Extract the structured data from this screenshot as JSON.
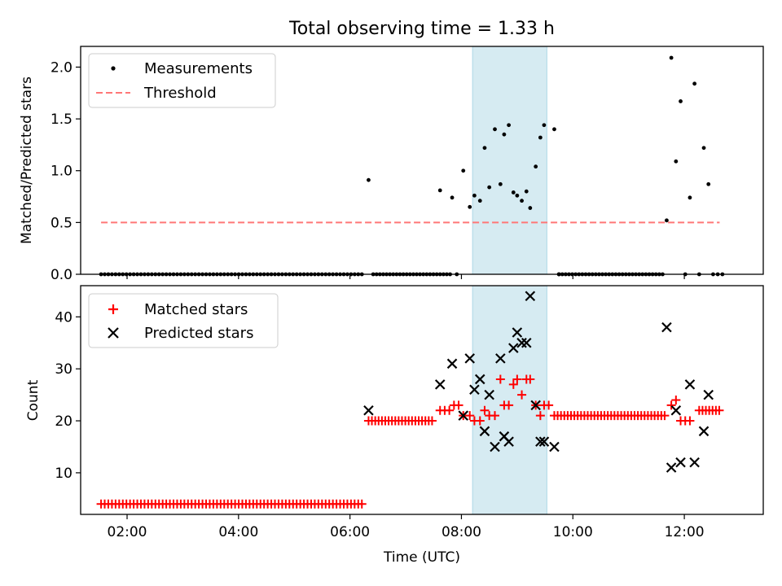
{
  "figure_title": "Total observing time = 1.33 h",
  "chart_data": [
    {
      "type": "scatter",
      "panel": "top",
      "ylabel": "Matched/Predicted stars",
      "xlabel": "",
      "xlim": [
        "01:10",
        "13:25"
      ],
      "ylim": [
        0,
        2.2
      ],
      "yticks": [
        "0.0",
        "0.5",
        "1.0",
        "1.5",
        "2.0"
      ],
      "xticks": [
        "02:00",
        "04:00",
        "06:00",
        "08:00",
        "10:00",
        "12:00"
      ],
      "highlight_span": {
        "start": "08:12",
        "end": "09:32",
        "color": "#add8e6"
      },
      "legend": {
        "placement": "top-left",
        "entries": [
          "Measurements",
          "Threshold"
        ]
      },
      "series": [
        {
          "name": "Measurements",
          "color": "#000000",
          "points": [
            [
              "06:20",
              0.91
            ],
            [
              "07:37",
              0.81
            ],
            [
              "07:50",
              0.74
            ],
            [
              "08:02",
              1.0
            ],
            [
              "08:09",
              0.65
            ],
            [
              "08:14",
              0.76
            ],
            [
              "08:20",
              0.71
            ],
            [
              "08:25",
              1.22
            ],
            [
              "08:30",
              0.84
            ],
            [
              "08:36",
              1.4
            ],
            [
              "08:42",
              0.87
            ],
            [
              "08:46",
              1.35
            ],
            [
              "08:51",
              1.44
            ],
            [
              "08:56",
              0.79
            ],
            [
              "09:00",
              0.76
            ],
            [
              "09:05",
              0.71
            ],
            [
              "09:10",
              0.8
            ],
            [
              "09:14",
              0.64
            ],
            [
              "09:20",
              1.04
            ],
            [
              "09:25",
              1.32
            ],
            [
              "09:29",
              1.44
            ],
            [
              "09:40",
              1.4
            ],
            [
              "11:41",
              0.52
            ],
            [
              "11:46",
              2.09
            ],
            [
              "11:51",
              1.09
            ],
            [
              "11:56",
              1.67
            ],
            [
              "12:06",
              0.74
            ],
            [
              "12:11",
              1.84
            ],
            [
              "12:21",
              1.22
            ],
            [
              "12:26",
              0.87
            ],
            [
              "12:01",
              0.0
            ],
            [
              "12:16",
              0.0
            ],
            [
              "12:31",
              0.0
            ],
            [
              "12:36",
              0.0
            ],
            [
              "12:41",
              0.0
            ],
            [
              "07:55",
              0.0
            ],
            [
              "09:45",
              0.0
            ]
          ],
          "zero_runs": [
            {
              "start": "01:32",
              "end": "06:15",
              "step_min": 3.9
            },
            {
              "start": "06:25",
              "end": "07:50",
              "step_min": 3.6
            },
            {
              "start": "09:45",
              "end": "11:40",
              "step_min": 3.6
            }
          ]
        },
        {
          "name": "Threshold",
          "color": "#ff7777",
          "style": "dashed",
          "x": [
            "01:32",
            "12:38"
          ],
          "y": [
            0.5,
            0.5
          ]
        }
      ]
    },
    {
      "type": "scatter",
      "panel": "bottom",
      "ylabel": "Count",
      "xlabel": "Time (UTC)",
      "xlim": [
        "01:10",
        "13:25"
      ],
      "ylim": [
        2,
        46
      ],
      "yticks": [
        "10",
        "20",
        "30",
        "40"
      ],
      "xticks": [
        "02:00",
        "04:00",
        "06:00",
        "08:00",
        "10:00",
        "12:00"
      ],
      "highlight_span": {
        "start": "08:12",
        "end": "09:32",
        "color": "#add8e6"
      },
      "legend": {
        "placement": "top-left",
        "entries": [
          "Matched stars",
          "Predicted stars"
        ]
      },
      "series": [
        {
          "name": "Matched stars",
          "marker": "plus",
          "color": "#ff0000",
          "runs": [
            {
              "start": "01:32",
              "end": "06:15",
              "step_min": 3.9,
              "value": 4
            },
            {
              "start": "06:20",
              "end": "07:30",
              "step_min": 3.6,
              "value": 20
            },
            {
              "start": "09:40",
              "end": "11:40",
              "step_min": 3.6,
              "value": 21
            },
            {
              "start": "12:16",
              "end": "12:41",
              "step_min": 3.6,
              "value": 22
            }
          ],
          "points": [
            [
              "07:37",
              22
            ],
            [
              "07:42",
              22
            ],
            [
              "07:47",
              22
            ],
            [
              "07:52",
              23
            ],
            [
              "07:57",
              23
            ],
            [
              "08:02",
              21
            ],
            [
              "08:09",
              21
            ],
            [
              "08:14",
              20
            ],
            [
              "08:20",
              20
            ],
            [
              "08:25",
              22
            ],
            [
              "08:30",
              21
            ],
            [
              "08:36",
              21
            ],
            [
              "08:42",
              28
            ],
            [
              "08:46",
              23
            ],
            [
              "08:51",
              23
            ],
            [
              "08:56",
              27
            ],
            [
              "09:00",
              28
            ],
            [
              "09:05",
              25
            ],
            [
              "09:10",
              28
            ],
            [
              "09:14",
              28
            ],
            [
              "09:20",
              23
            ],
            [
              "09:25",
              21
            ],
            [
              "09:29",
              23
            ],
            [
              "09:34",
              23
            ],
            [
              "11:46",
              23
            ],
            [
              "11:51",
              24
            ],
            [
              "11:56",
              20
            ],
            [
              "12:01",
              20
            ],
            [
              "12:06",
              20
            ]
          ]
        },
        {
          "name": "Predicted stars",
          "marker": "x",
          "color": "#000000",
          "points": [
            [
              "06:20",
              22
            ],
            [
              "07:37",
              27
            ],
            [
              "07:50",
              31
            ],
            [
              "08:02",
              21
            ],
            [
              "08:09",
              32
            ],
            [
              "08:14",
              26
            ],
            [
              "08:20",
              28
            ],
            [
              "08:25",
              18
            ],
            [
              "08:30",
              25
            ],
            [
              "08:36",
              15
            ],
            [
              "08:42",
              32
            ],
            [
              "08:46",
              17
            ],
            [
              "08:51",
              16
            ],
            [
              "08:56",
              34
            ],
            [
              "09:00",
              37
            ],
            [
              "09:05",
              35
            ],
            [
              "09:10",
              35
            ],
            [
              "09:14",
              44
            ],
            [
              "09:20",
              23
            ],
            [
              "09:25",
              16
            ],
            [
              "09:29",
              16
            ],
            [
              "09:40",
              15
            ],
            [
              "11:41",
              38
            ],
            [
              "11:46",
              11
            ],
            [
              "11:51",
              22
            ],
            [
              "11:56",
              12
            ],
            [
              "12:06",
              27
            ],
            [
              "12:11",
              12
            ],
            [
              "12:21",
              18
            ],
            [
              "12:26",
              25
            ]
          ]
        }
      ]
    }
  ]
}
